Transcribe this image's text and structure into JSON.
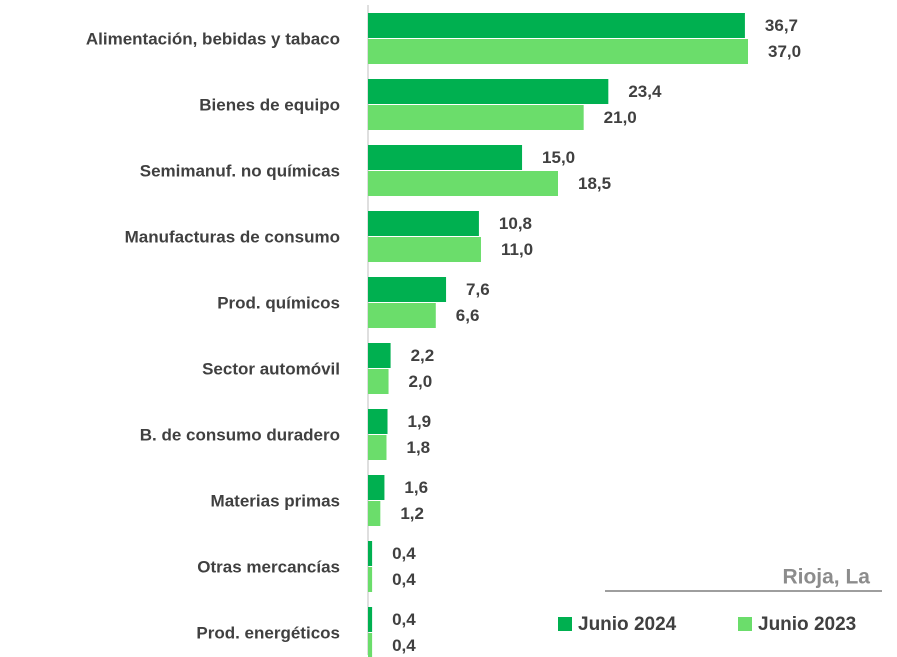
{
  "chart_data": {
    "type": "bar",
    "orientation": "horizontal",
    "annotation": "Rioja, La",
    "categories": [
      "Alimentación, bebidas y tabaco",
      "Bienes de equipo",
      "Semimanuf. no químicas",
      "Manufacturas de consumo",
      "Prod. químicos",
      "Sector automóvil",
      "B. de consumo duradero",
      "Materias primas",
      "Otras mercancías",
      "Prod. energéticos"
    ],
    "series": [
      {
        "name": "Junio 2024",
        "color": "#00b050",
        "values": [
          36.7,
          23.4,
          15.0,
          10.8,
          7.6,
          2.2,
          1.9,
          1.6,
          0.4,
          0.4
        ],
        "value_labels": [
          "36,7",
          "23,4",
          "15,0",
          "10,8",
          "7,6",
          "2,2",
          "1,9",
          "1,6",
          "0,4",
          "0,4"
        ]
      },
      {
        "name": "Junio 2023",
        "color": "#6bdd6b",
        "values": [
          37.0,
          21.0,
          18.5,
          11.0,
          6.6,
          2.0,
          1.8,
          1.2,
          0.4,
          0.4
        ],
        "value_labels": [
          "37,0",
          "21,0",
          "18,5",
          "11,0",
          "6,6",
          "2,0",
          "1,8",
          "1,2",
          "0,4",
          "0,4"
        ]
      }
    ],
    "legend": "bottom-right"
  }
}
